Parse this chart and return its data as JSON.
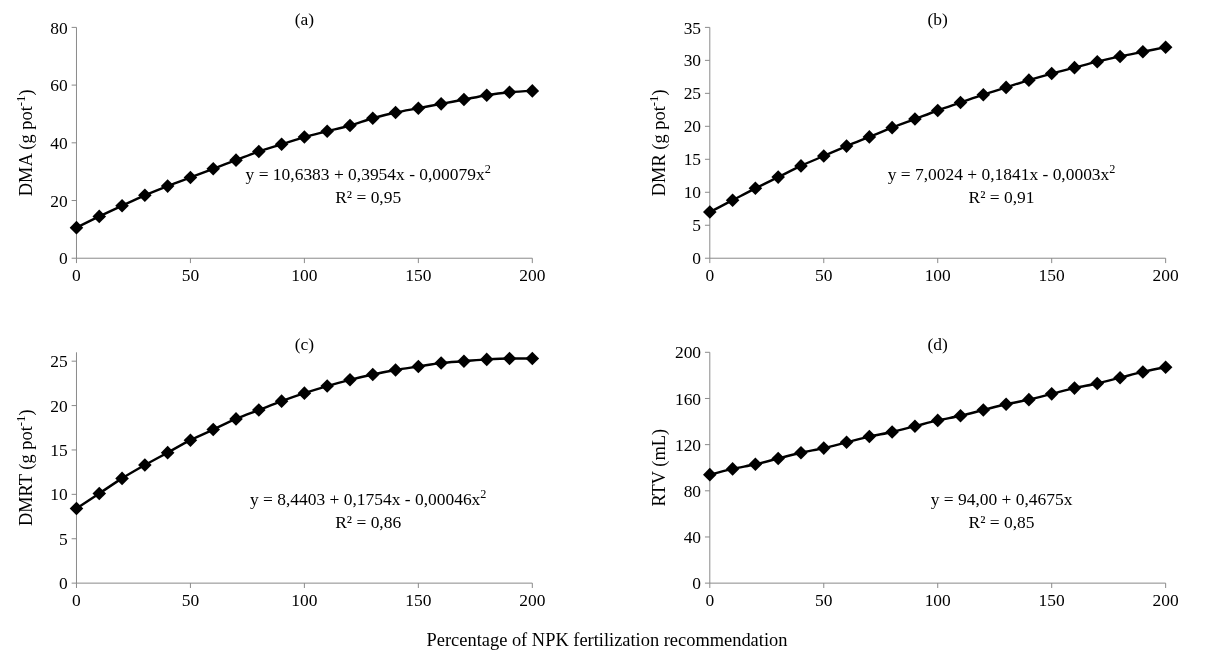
{
  "chart_data": [
    {
      "type": "line",
      "title": "(a)",
      "ylabel": "DMA (g pot$^{-1}$)",
      "x": [
        0,
        10,
        20,
        30,
        40,
        50,
        60,
        70,
        80,
        90,
        100,
        110,
        120,
        130,
        140,
        150,
        160,
        170,
        180,
        190,
        200
      ],
      "xlim": [
        0,
        200
      ],
      "xticks": [
        0,
        50,
        100,
        150,
        200
      ],
      "ylim": [
        0,
        80
      ],
      "yticks": [
        0,
        20,
        40,
        60,
        80
      ],
      "grid": false,
      "marker": "diamond",
      "line_style": "solid",
      "series": [
        {
          "color": "#000000",
          "values": [
            10.6,
            14.5,
            18.2,
            21.8,
            25,
            28,
            31,
            34,
            37,
            39.5,
            42,
            44,
            46,
            48.5,
            50.5,
            52,
            53.5,
            55,
            56.5,
            57.5,
            58
          ]
        }
      ],
      "annotations": [
        "y = 10,6383 + 0,3954x - 0,00079x$^{2}$",
        "R² = 0,95"
      ]
    },
    {
      "type": "line",
      "title": "(b)",
      "ylabel": "DMR (g pot$^{-1}$)",
      "x": [
        0,
        10,
        20,
        30,
        40,
        50,
        60,
        70,
        80,
        90,
        100,
        110,
        120,
        130,
        140,
        150,
        160,
        170,
        180,
        190,
        200
      ],
      "xlim": [
        0,
        200
      ],
      "xticks": [
        0,
        50,
        100,
        150,
        200
      ],
      "ylim": [
        0,
        35
      ],
      "yticks": [
        0,
        5,
        10,
        15,
        20,
        25,
        30,
        35
      ],
      "grid": false,
      "marker": "diamond",
      "line_style": "solid",
      "series": [
        {
          "color": "#000000",
          "values": [
            7,
            8.8,
            10.6,
            12.3,
            14,
            15.5,
            17,
            18.4,
            19.8,
            21.1,
            22.4,
            23.6,
            24.8,
            25.9,
            27,
            28,
            28.9,
            29.8,
            30.6,
            31.3,
            32
          ]
        }
      ],
      "annotations": [
        "y = 7,0024 + 0,1841x - 0,0003x$^{2}$",
        "R² = 0,91"
      ]
    },
    {
      "type": "line",
      "title": "(c)",
      "ylabel": "DMRT (g pot$^{-1}$)",
      "xlabel": "Percentage of NPK fertilization recommendation",
      "x": [
        0,
        10,
        20,
        30,
        40,
        50,
        60,
        70,
        80,
        90,
        100,
        110,
        120,
        130,
        140,
        150,
        160,
        170,
        180,
        190,
        200
      ],
      "xlim": [
        0,
        200
      ],
      "xticks": [
        0,
        50,
        100,
        150,
        200
      ],
      "ylim": [
        0,
        26
      ],
      "yticks": [
        0,
        5,
        10,
        15,
        20,
        25
      ],
      "grid": false,
      "marker": "diamond",
      "line_style": "solid",
      "series": [
        {
          "color": "#000000",
          "values": [
            8.4,
            10.1,
            11.8,
            13.3,
            14.7,
            16.1,
            17.3,
            18.5,
            19.5,
            20.5,
            21.4,
            22.2,
            22.9,
            23.5,
            24,
            24.4,
            24.8,
            25,
            25.2,
            25.3,
            25.3
          ]
        }
      ],
      "annotations": [
        "y = 8,4403 + 0,1754x - 0,00046x$^{2}$",
        "R² = 0,86"
      ]
    },
    {
      "type": "line",
      "title": "(d)",
      "ylabel": "RTV (mL)",
      "x": [
        0,
        10,
        20,
        30,
        40,
        50,
        60,
        70,
        80,
        90,
        100,
        110,
        120,
        130,
        140,
        150,
        160,
        170,
        180,
        190,
        200
      ],
      "xlim": [
        0,
        200
      ],
      "xticks": [
        0,
        50,
        100,
        150,
        200
      ],
      "ylim": [
        0,
        200
      ],
      "yticks": [
        0,
        40,
        80,
        120,
        160,
        200
      ],
      "grid": false,
      "marker": "diamond",
      "line_style": "solid",
      "series": [
        {
          "color": "#000000",
          "values": [
            94,
            99,
            103,
            108,
            113,
            117,
            122,
            127,
            131,
            136,
            141,
            145,
            150,
            155,
            159,
            164,
            169,
            173,
            178,
            183,
            187
          ]
        }
      ],
      "annotations": [
        "y = 94,00 + 0,4675x",
        "R² = 0,85"
      ]
    }
  ]
}
